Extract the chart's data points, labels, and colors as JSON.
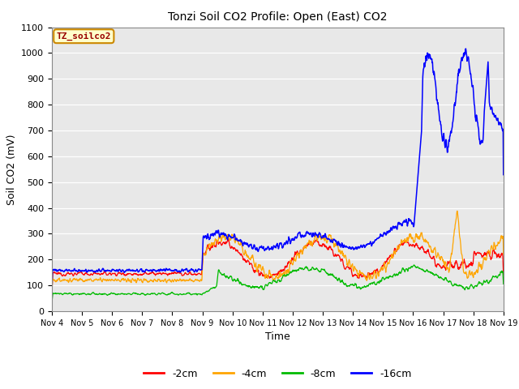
{
  "title": "Tonzi Soil CO2 Profile: Open (East) CO2",
  "ylabel": "Soil CO2 (mV)",
  "xlabel": "Time",
  "ylim": [
    0,
    1100
  ],
  "yticks": [
    0,
    100,
    200,
    300,
    400,
    500,
    600,
    700,
    800,
    900,
    1000,
    1100
  ],
  "colors": {
    "2cm": "#ff0000",
    "4cm": "#ffa500",
    "8cm": "#00bb00",
    "16cm": "#0000ff"
  },
  "legend_labels": [
    "-2cm",
    "-4cm",
    "-8cm",
    "-16cm"
  ],
  "legend_colors": [
    "#ff0000",
    "#ffa500",
    "#00bb00",
    "#0000ff"
  ],
  "annotation_text": "TZ_soilco2",
  "annotation_box_color": "#ffffcc",
  "annotation_text_color": "#990000",
  "annotation_border_color": "#cc8800",
  "plot_bg_color": "#e8e8e8",
  "fig_bg_color": "#ffffff",
  "n_days": 15,
  "points_per_day": 96,
  "figsize": [
    6.4,
    4.8
  ],
  "dpi": 100
}
